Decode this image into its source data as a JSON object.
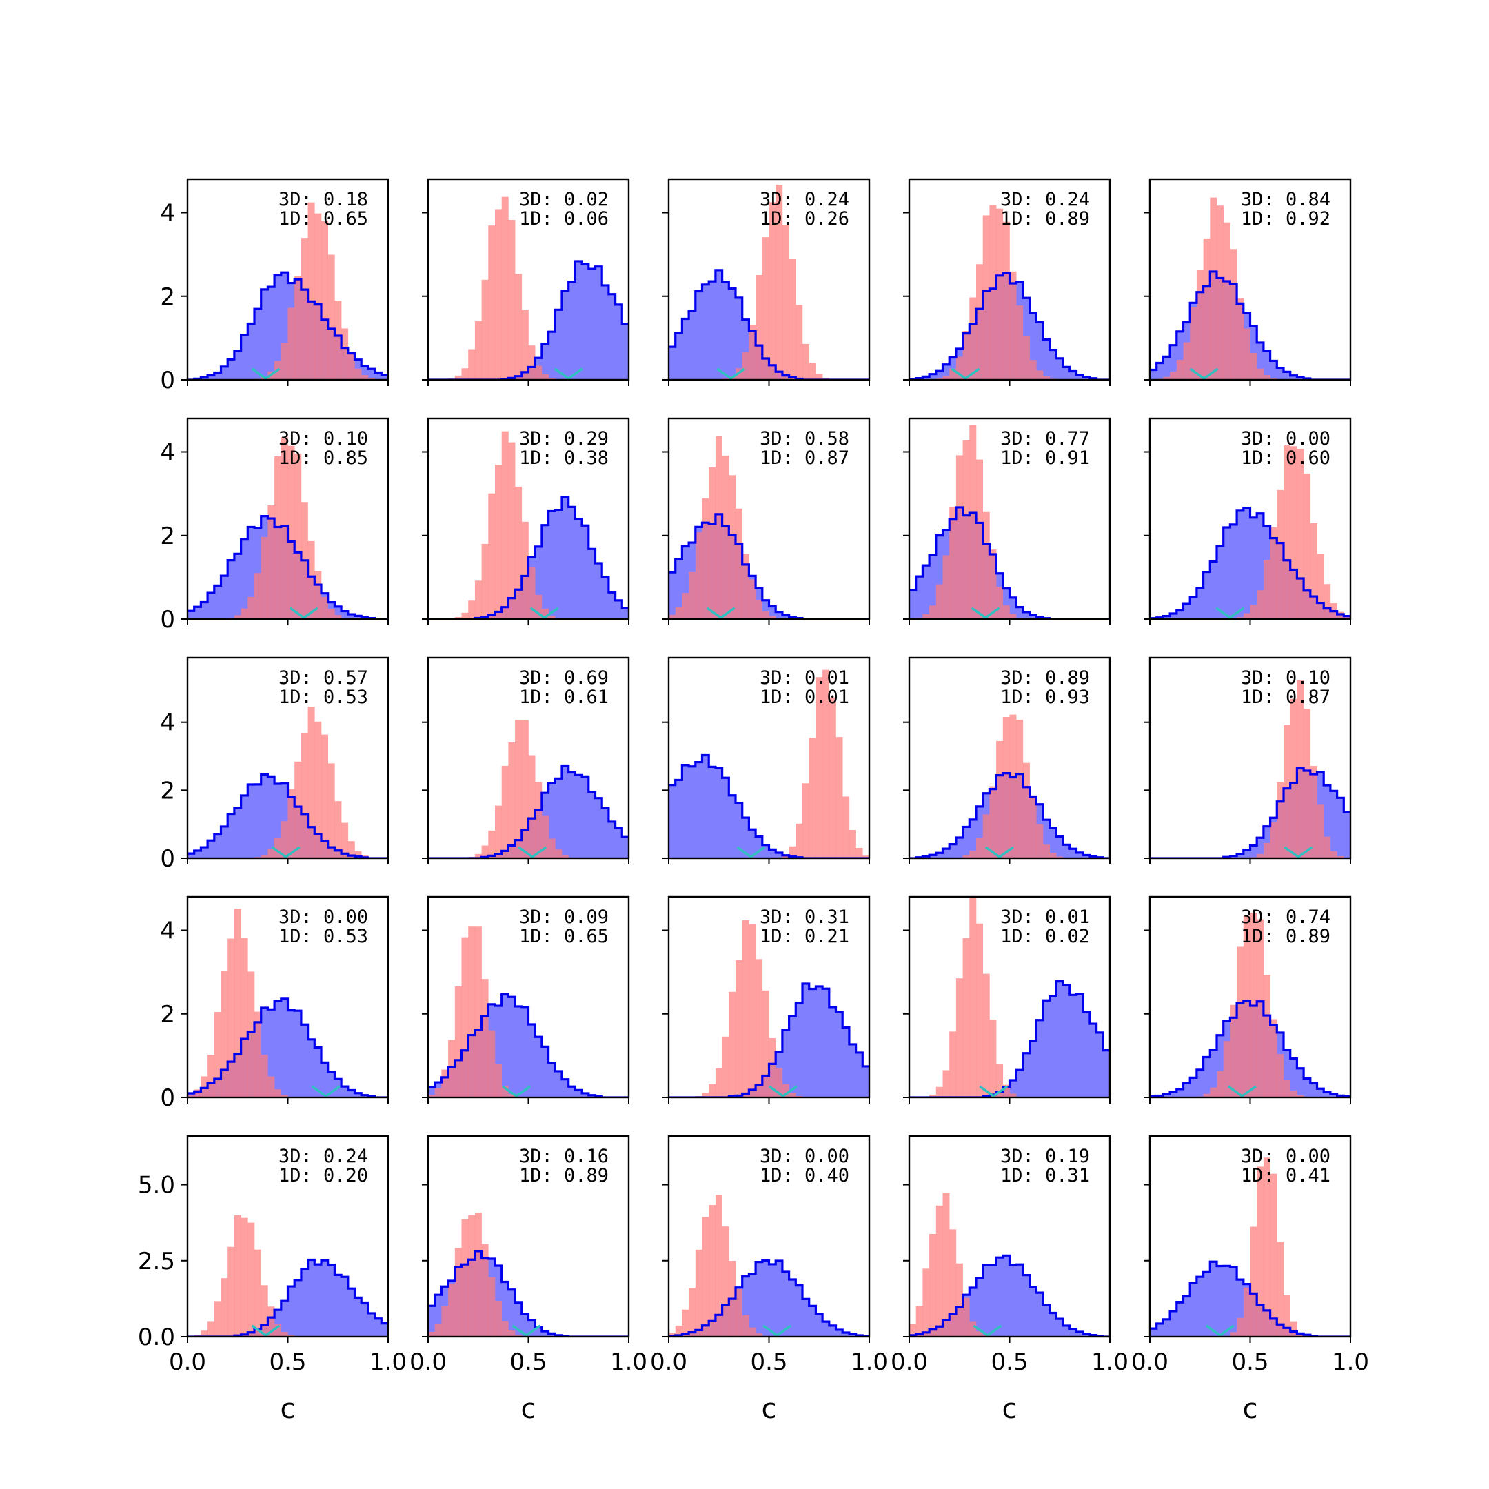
{
  "chart_data": {
    "type": "histogram-grid",
    "rows": 5,
    "cols": 5,
    "xlabel": "c",
    "xlim": [
      0,
      1
    ],
    "xticks": [
      "0.0",
      "0.5",
      "1.0"
    ],
    "rows_y": [
      {
        "ylim": [
          0,
          4.8
        ],
        "yticks": [
          0,
          2,
          4
        ],
        "ytick_labels": [
          "0",
          "2",
          "4"
        ]
      },
      {
        "ylim": [
          0,
          4.8
        ],
        "yticks": [
          0,
          2,
          4
        ],
        "ytick_labels": [
          "0",
          "2",
          "4"
        ]
      },
      {
        "ylim": [
          0,
          5.9
        ],
        "yticks": [
          0,
          2,
          4
        ],
        "ytick_labels": [
          "0",
          "2",
          "4"
        ]
      },
      {
        "ylim": [
          0,
          4.8
        ],
        "yticks": [
          0,
          2,
          4
        ],
        "ytick_labels": [
          "0",
          "2",
          "4"
        ]
      },
      {
        "ylim": [
          0,
          6.6
        ],
        "yticks": [
          0,
          2.5,
          5.0
        ],
        "ytick_labels": [
          "0.0",
          "2.5",
          "5.0"
        ]
      }
    ],
    "colors": {
      "blue": "#0000ee",
      "blue_fill": "#8080ff",
      "red": "#ff7b7b",
      "overlap": "#c03a6e",
      "marker": "#30c0c0"
    },
    "panels": [
      {
        "ann3d": "3D: 0.18",
        "ann1d": "1D: 0.65",
        "blue": {
          "mu": 0.47,
          "sd": 0.16,
          "peak": 2.5,
          "skew": -0.5
        },
        "red": {
          "mu": 0.64,
          "sd": 0.09,
          "peak": 4.2
        },
        "marker": 0.39
      },
      {
        "ann3d": "3D: 0.02",
        "ann1d": "1D: 0.06",
        "blue": {
          "mu": 0.78,
          "sd": 0.14,
          "peak": 2.8,
          "skew": -0.4
        },
        "red": {
          "mu": 0.37,
          "sd": 0.08,
          "peak": 4.4
        },
        "marker": 0.7
      },
      {
        "ann3d": "3D: 0.24",
        "ann1d": "1D: 0.26",
        "blue": {
          "mu": 0.25,
          "sd": 0.14,
          "peak": 2.5,
          "skew": 0.2
        },
        "red": {
          "mu": 0.54,
          "sd": 0.08,
          "peak": 4.5
        },
        "marker": 0.31
      },
      {
        "ann3d": "3D: 0.24",
        "ann1d": "1D: 0.89",
        "blue": {
          "mu": 0.48,
          "sd": 0.15,
          "peak": 2.5,
          "skew": 0
        },
        "red": {
          "mu": 0.43,
          "sd": 0.09,
          "peak": 4.3
        },
        "marker": 0.28
      },
      {
        "ann3d": "3D: 0.84",
        "ann1d": "1D: 0.92",
        "blue": {
          "mu": 0.34,
          "sd": 0.15,
          "peak": 2.5,
          "skew": 0
        },
        "red": {
          "mu": 0.34,
          "sd": 0.09,
          "peak": 4.3
        },
        "marker": 0.27
      },
      {
        "ann3d": "3D: 0.10",
        "ann1d": "1D: 0.85",
        "blue": {
          "mu": 0.4,
          "sd": 0.17,
          "peak": 2.4,
          "skew": 0
        },
        "red": {
          "mu": 0.5,
          "sd": 0.09,
          "peak": 4.4
        },
        "marker": 0.58
      },
      {
        "ann3d": "3D: 0.29",
        "ann1d": "1D: 0.38",
        "blue": {
          "mu": 0.68,
          "sd": 0.14,
          "peak": 2.8,
          "skew": 0
        },
        "red": {
          "mu": 0.39,
          "sd": 0.08,
          "peak": 4.4
        },
        "marker": 0.58
      },
      {
        "ann3d": "3D: 0.58",
        "ann1d": "1D: 0.87",
        "blue": {
          "mu": 0.24,
          "sd": 0.15,
          "peak": 2.4,
          "skew": 0.4
        },
        "red": {
          "mu": 0.26,
          "sd": 0.09,
          "peak": 4.2
        },
        "marker": 0.26
      },
      {
        "ann3d": "3D: 0.77",
        "ann1d": "1D: 0.91",
        "blue": {
          "mu": 0.28,
          "sd": 0.14,
          "peak": 2.6,
          "skew": 0.3
        },
        "red": {
          "mu": 0.3,
          "sd": 0.08,
          "peak": 4.6
        },
        "marker": 0.38
      },
      {
        "ann3d": "3D: 0.00",
        "ann1d": "1D: 0.60",
        "blue": {
          "mu": 0.48,
          "sd": 0.16,
          "peak": 2.6,
          "skew": -0.3
        },
        "red": {
          "mu": 0.72,
          "sd": 0.09,
          "peak": 4.3
        },
        "marker": 0.4
      },
      {
        "ann3d": "3D: 0.57",
        "ann1d": "1D: 0.53",
        "blue": {
          "mu": 0.4,
          "sd": 0.16,
          "peak": 2.4,
          "skew": 0
        },
        "red": {
          "mu": 0.63,
          "sd": 0.09,
          "peak": 4.3
        },
        "marker": 0.49
      },
      {
        "ann3d": "3D: 0.69",
        "ann1d": "1D: 0.61",
        "blue": {
          "mu": 0.7,
          "sd": 0.15,
          "peak": 2.6,
          "skew": -0.2
        },
        "red": {
          "mu": 0.46,
          "sd": 0.08,
          "peak": 4.1
        },
        "marker": 0.52
      },
      {
        "ann3d": "3D: 0.01",
        "ann1d": "1D: 0.01",
        "blue": {
          "mu": 0.18,
          "sd": 0.17,
          "peak": 2.9,
          "skew": 0.4
        },
        "red": {
          "mu": 0.78,
          "sd": 0.07,
          "peak": 5.6
        },
        "marker": 0.41
      },
      {
        "ann3d": "3D: 0.89",
        "ann1d": "1D: 0.93",
        "blue": {
          "mu": 0.5,
          "sd": 0.15,
          "peak": 2.5,
          "skew": 0
        },
        "red": {
          "mu": 0.51,
          "sd": 0.08,
          "peak": 4.4
        },
        "marker": 0.45
      },
      {
        "ann3d": "3D: 0.10",
        "ann1d": "1D: 0.87",
        "blue": {
          "mu": 0.78,
          "sd": 0.15,
          "peak": 2.6,
          "skew": -0.4
        },
        "red": {
          "mu": 0.74,
          "sd": 0.07,
          "peak": 5.2
        },
        "marker": 0.74
      },
      {
        "ann3d": "3D: 0.00",
        "ann1d": "1D: 0.53",
        "blue": {
          "mu": 0.47,
          "sd": 0.16,
          "peak": 2.3,
          "skew": 0.2
        },
        "red": {
          "mu": 0.25,
          "sd": 0.08,
          "peak": 4.3
        },
        "marker": 0.69
      },
      {
        "ann3d": "3D: 0.09",
        "ann1d": "1D: 0.65",
        "blue": {
          "mu": 0.4,
          "sd": 0.16,
          "peak": 2.4,
          "skew": 0.2
        },
        "red": {
          "mu": 0.22,
          "sd": 0.07,
          "peak": 4.3
        },
        "marker": 0.44
      },
      {
        "ann3d": "3D: 0.31",
        "ann1d": "1D: 0.21",
        "blue": {
          "mu": 0.72,
          "sd": 0.14,
          "peak": 2.7,
          "skew": -0.3
        },
        "red": {
          "mu": 0.4,
          "sd": 0.08,
          "peak": 4.2
        },
        "marker": 0.57
      },
      {
        "ann3d": "3D: 0.01",
        "ann1d": "1D: 0.02",
        "blue": {
          "mu": 0.76,
          "sd": 0.14,
          "peak": 2.7,
          "skew": -0.4
        },
        "red": {
          "mu": 0.32,
          "sd": 0.07,
          "peak": 4.6
        },
        "marker": 0.42
      },
      {
        "ann3d": "3D: 0.74",
        "ann1d": "1D: 0.89",
        "blue": {
          "mu": 0.5,
          "sd": 0.16,
          "peak": 2.3,
          "skew": 0
        },
        "red": {
          "mu": 0.51,
          "sd": 0.08,
          "peak": 4.6
        },
        "marker": 0.46
      },
      {
        "ann3d": "3D: 0.24",
        "ann1d": "1D: 0.20",
        "blue": {
          "mu": 0.65,
          "sd": 0.15,
          "peak": 2.5,
          "skew": -0.3
        },
        "red": {
          "mu": 0.28,
          "sd": 0.08,
          "peak": 4.1
        },
        "marker": 0.39
      },
      {
        "ann3d": "3D: 0.16",
        "ann1d": "1D: 0.89",
        "blue": {
          "mu": 0.27,
          "sd": 0.15,
          "peak": 2.7,
          "skew": 0.4
        },
        "red": {
          "mu": 0.22,
          "sd": 0.08,
          "peak": 4.2
        },
        "marker": 0.49
      },
      {
        "ann3d": "3D: 0.00",
        "ann1d": "1D: 0.40",
        "blue": {
          "mu": 0.5,
          "sd": 0.16,
          "peak": 2.5,
          "skew": 0
        },
        "red": {
          "mu": 0.23,
          "sd": 0.08,
          "peak": 4.6
        },
        "marker": 0.54
      },
      {
        "ann3d": "3D: 0.19",
        "ann1d": "1D: 0.31",
        "blue": {
          "mu": 0.47,
          "sd": 0.16,
          "peak": 2.6,
          "skew": 0
        },
        "red": {
          "mu": 0.17,
          "sd": 0.07,
          "peak": 4.6
        },
        "marker": 0.39
      },
      {
        "ann3d": "3D: 0.00",
        "ann1d": "1D: 0.41",
        "blue": {
          "mu": 0.35,
          "sd": 0.16,
          "peak": 2.4,
          "skew": 0
        },
        "red": {
          "mu": 0.58,
          "sd": 0.06,
          "peak": 6.2
        },
        "marker": 0.35
      }
    ]
  }
}
